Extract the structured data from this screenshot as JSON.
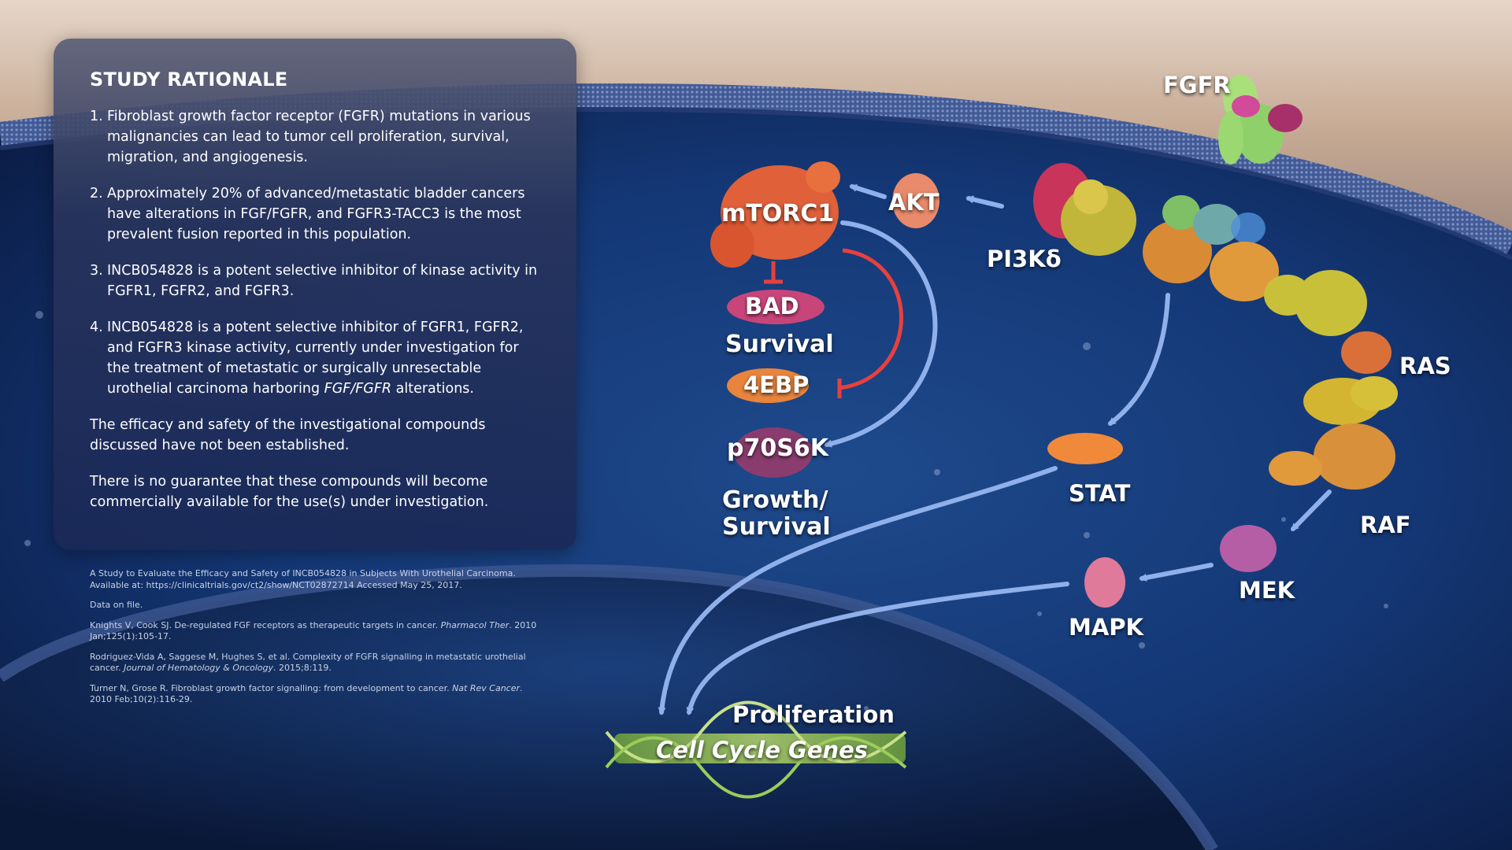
{
  "panel": {
    "title": "STUDY RATIONALE",
    "points": [
      {
        "num": "1.",
        "text": "Fibroblast growth factor receptor (FGFR) mutations in various malignancies can lead to tumor cell proliferation, survival, migration, and angiogenesis."
      },
      {
        "num": "2.",
        "text": "Approximately 20% of advanced/metastatic bladder cancers have alterations in FGF/FGFR, and FGFR3-TACC3 is the most prevalent fusion reported in this population."
      },
      {
        "num": "3.",
        "text": "INCB054828 is a potent selective inhibitor of kinase activity in FGFR1, FGFR2, and FGFR3."
      },
      {
        "num": "4.",
        "text_before": "INCB054828 is a potent selective inhibitor of FGFR1, FGFR2, and FGFR3 kinase activity, currently under investigation for the treatment of metastatic or surgically unresectable urothelial carcinoma harboring ",
        "text_italic": "FGF/FGFR",
        "text_after": " alterations."
      }
    ],
    "notes": [
      "The efficacy and safety of the investigational compounds discussed have not been established.",
      "There is no guarantee that these compounds will become commercially available for the use(s) under investigation."
    ]
  },
  "references": [
    {
      "before": "A Study to Evaluate the Efficacy and Safety of INCB054828 in Subjects With Urothelial Carcinoma. Available at: https://clinicaltrials.gov/ct2/show/NCT02872714 Accessed May 25, 2017.",
      "italic": "",
      "after": ""
    },
    {
      "before": "Data on file.",
      "italic": "",
      "after": ""
    },
    {
      "before": "Knights V, Cook SJ. De-regulated FGF receptors as therapeutic targets in cancer. ",
      "italic": "Pharmacol Ther",
      "after": ". 2010 Jan;125(1):105-17."
    },
    {
      "before": "Rodriguez-Vida A, Saggese M, Hughes S, et al. Complexity of FGFR signalling in metastatic urothelial cancer. ",
      "italic": "Journal of Hematology & Oncology",
      "after": ". 2015;8:119."
    },
    {
      "before": "Turner N, Grose R. Fibroblast growth factor signalling: from development to cancer. ",
      "italic": "Nat Rev Cancer",
      "after": ". 2010 Feb;10(2):116-29."
    }
  ],
  "diagram": {
    "labels": {
      "fgfr": "FGFR",
      "akt": "AKT",
      "mtorc1": "mTORC1",
      "pi3k": "PI3Kδ",
      "bad": "BAD",
      "survival": "Survival",
      "fourebp": "4EBP",
      "p70s6k": "p70S6K",
      "growth_line1": "Growth/",
      "growth_line2": "Survival",
      "ras": "RAS",
      "stat": "STAT",
      "raf": "RAF",
      "mek": "MEK",
      "mapk": "MAPK",
      "proliferation": "Proliferation",
      "cell_cycle": "Cell Cycle Genes"
    },
    "colors": {
      "activation_arrow": "#8fb0ea",
      "inhibition_line": "#e8403e",
      "membrane": "#3a4f8a",
      "dna": "#8fc24a"
    }
  }
}
